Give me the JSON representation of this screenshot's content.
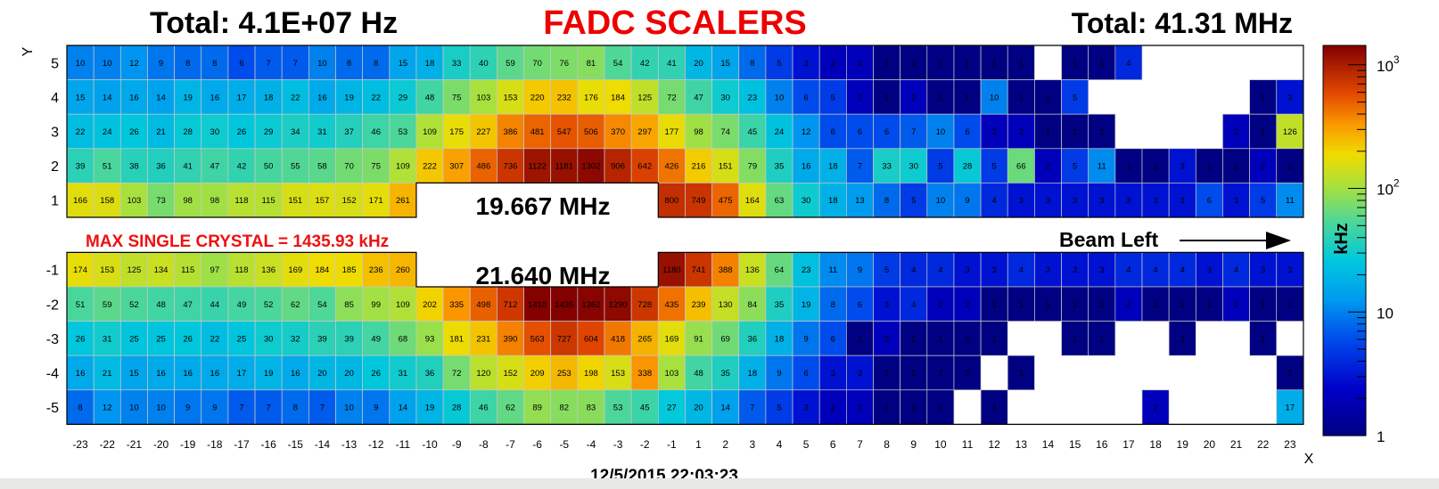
{
  "header": {
    "title": "FADC SCALERS",
    "total_left": "Total:  4.1E+07 Hz",
    "total_right": "Total:  41.31 MHz"
  },
  "annotations": {
    "upper_hole_rate": "19.667 MHz",
    "lower_hole_rate": "21.640 MHz",
    "max_crystal": "MAX SINGLE CRYSTAL = 1435.93 kHz",
    "beam_label": "Beam Left",
    "timestamp": "12/5/2015 22:03:23"
  },
  "colors": {
    "title": "#ee0000",
    "max_crystal": "#ee1111",
    "empty_cell": "#ffffff",
    "grid_line": "#c8c8c8"
  },
  "chart_data": {
    "type": "heatmap",
    "xlabel": "X",
    "ylabel": "Y",
    "zlabel": "kHz",
    "z_scale": "log",
    "zlim": [
      1,
      1435.93
    ],
    "colorbar_ticks": [
      {
        "value": 1000,
        "label": "10",
        "exp": "3"
      },
      {
        "value": 100,
        "label": "10",
        "exp": "2"
      },
      {
        "value": 10,
        "label": "10",
        "exp": ""
      },
      {
        "value": 1,
        "label": "1",
        "exp": ""
      }
    ],
    "x_tick_labels": [
      "-23",
      "-22",
      "-21",
      "-20",
      "-19",
      "-18",
      "-17",
      "-16",
      "-15",
      "-14",
      "-13",
      "-12",
      "-11",
      "-10",
      "-9",
      "-8",
      "-7",
      "-6",
      "-5",
      "-4",
      "-3",
      "-2",
      "-1",
      "1",
      "2",
      "3",
      "4",
      "5",
      "6",
      "7",
      "8",
      "9",
      "10",
      "11",
      "12",
      "13",
      "14",
      "15",
      "16",
      "17",
      "18",
      "19",
      "20",
      "21",
      "22",
      "23"
    ],
    "rows": [
      {
        "y": "5",
        "values": [
          10,
          10,
          12,
          9,
          8,
          8,
          6,
          7,
          7,
          10,
          8,
          8,
          15,
          18,
          33,
          40,
          59,
          70,
          76,
          81,
          54,
          42,
          41,
          20,
          15,
          8,
          5,
          3,
          2,
          2,
          1,
          1,
          1,
          1,
          1,
          1,
          null,
          1,
          1,
          4,
          null,
          null,
          null,
          null,
          null,
          null
        ]
      },
      {
        "y": "4",
        "values": [
          15,
          14,
          16,
          14,
          19,
          16,
          17,
          18,
          22,
          16,
          19,
          22,
          29,
          48,
          75,
          103,
          153,
          220,
          232,
          176,
          184,
          125,
          72,
          47,
          30,
          23,
          10,
          6,
          5,
          2,
          1,
          2,
          1,
          1,
          10,
          1,
          1,
          5,
          null,
          null,
          null,
          null,
          null,
          null,
          1,
          3
        ]
      },
      {
        "y": "3",
        "values": [
          22,
          24,
          26,
          21,
          28,
          30,
          26,
          29,
          34,
          31,
          37,
          46,
          53,
          109,
          175,
          227,
          386,
          481,
          547,
          506,
          370,
          297,
          177,
          98,
          74,
          45,
          24,
          12,
          6,
          6,
          6,
          7,
          10,
          6,
          2,
          2,
          1,
          1,
          1,
          null,
          null,
          null,
          null,
          2,
          1,
          126
        ]
      },
      {
        "y": "2",
        "values": [
          39,
          51,
          38,
          36,
          41,
          47,
          42,
          50,
          55,
          58,
          70,
          75,
          109,
          222,
          307,
          486,
          736,
          1122,
          1181,
          1302,
          906,
          642,
          426,
          216,
          151,
          79,
          35,
          16,
          18,
          7,
          33,
          30,
          5,
          28,
          5,
          66,
          2,
          5,
          11,
          1,
          1,
          3,
          1,
          1,
          2,
          1
        ]
      },
      {
        "y": "1",
        "values": [
          166,
          158,
          103,
          73,
          98,
          98,
          118,
          115,
          151,
          157,
          152,
          171,
          261,
          null,
          null,
          null,
          null,
          null,
          null,
          null,
          null,
          null,
          800,
          749,
          475,
          164,
          63,
          30,
          18,
          13,
          8,
          5,
          10,
          9,
          4,
          3,
          3,
          3,
          3,
          3,
          3,
          3,
          6,
          3,
          5,
          11
        ]
      },
      {
        "y": "-1",
        "values": [
          174,
          153,
          125,
          134,
          115,
          97,
          118,
          136,
          169,
          184,
          185,
          236,
          260,
          null,
          null,
          null,
          null,
          null,
          null,
          null,
          null,
          null,
          1180,
          741,
          388,
          136,
          64,
          23,
          11,
          9,
          5,
          4,
          4,
          3,
          3,
          4,
          3,
          3,
          3,
          4,
          4,
          4,
          3,
          4,
          3,
          3
        ]
      },
      {
        "y": "-2",
        "values": [
          51,
          59,
          52,
          48,
          47,
          44,
          49,
          52,
          62,
          54,
          85,
          99,
          109,
          202,
          335,
          498,
          712,
          1410,
          1435,
          1362,
          1290,
          728,
          435,
          239,
          130,
          84,
          35,
          19,
          8,
          6,
          3,
          4,
          2,
          2,
          1,
          1,
          1,
          1,
          1,
          2,
          1,
          1,
          1,
          2,
          1,
          1
        ]
      },
      {
        "y": "-3",
        "values": [
          26,
          31,
          25,
          25,
          26,
          22,
          25,
          30,
          32,
          39,
          39,
          49,
          68,
          93,
          181,
          231,
          390,
          563,
          727,
          604,
          418,
          265,
          169,
          91,
          69,
          36,
          18,
          9,
          6,
          1,
          2,
          1,
          1,
          1,
          1,
          null,
          null,
          1,
          1,
          null,
          null,
          1,
          null,
          null,
          1,
          null
        ]
      },
      {
        "y": "-4",
        "values": [
          16,
          21,
          15,
          16,
          16,
          16,
          17,
          19,
          16,
          20,
          20,
          26,
          31,
          36,
          72,
          120,
          152,
          209,
          253,
          198,
          153,
          338,
          103,
          48,
          35,
          18,
          9,
          6,
          3,
          3,
          1,
          1,
          1,
          1,
          null,
          1,
          null,
          null,
          null,
          null,
          null,
          null,
          null,
          null,
          null,
          1
        ]
      },
      {
        "y": "-5",
        "values": [
          8,
          12,
          10,
          10,
          9,
          9,
          7,
          7,
          8,
          7,
          10,
          9,
          14,
          19,
          28,
          46,
          62,
          89,
          82,
          83,
          53,
          45,
          27,
          20,
          14,
          7,
          5,
          3,
          2,
          2,
          1,
          1,
          1,
          null,
          1,
          null,
          null,
          null,
          null,
          null,
          2,
          null,
          null,
          null,
          null,
          17
        ]
      }
    ]
  }
}
